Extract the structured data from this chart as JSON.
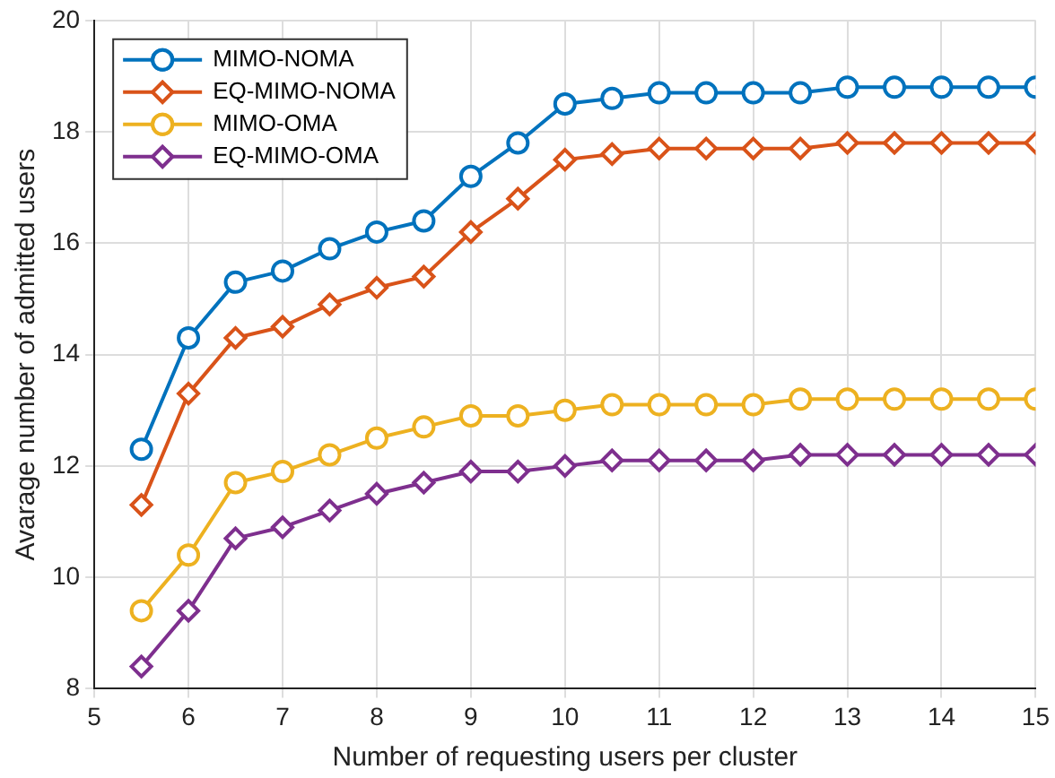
{
  "chart_data": {
    "type": "line",
    "xlabel": "Number of requesting users per cluster",
    "ylabel": "Avarage number of admitted users",
    "x": [
      5.5,
      6,
      6.5,
      7,
      7.5,
      8,
      8.5,
      9,
      9.5,
      10,
      10.5,
      11,
      11.5,
      12,
      12.5,
      13,
      13.5,
      14,
      14.5,
      15
    ],
    "series": [
      {
        "name": "MIMO-NOMA",
        "color": "#0072bd",
        "marker": "circle",
        "values": [
          12.3,
          14.3,
          15.3,
          15.5,
          15.9,
          16.2,
          16.4,
          17.2,
          17.8,
          18.5,
          18.6,
          18.7,
          18.7,
          18.7,
          18.7,
          18.8,
          18.8,
          18.8,
          18.8,
          18.8
        ]
      },
      {
        "name": "EQ-MIMO-NOMA",
        "color": "#d95319",
        "marker": "diamond",
        "values": [
          11.3,
          13.3,
          14.3,
          14.5,
          14.9,
          15.2,
          15.4,
          16.2,
          16.8,
          17.5,
          17.6,
          17.7,
          17.7,
          17.7,
          17.7,
          17.8,
          17.8,
          17.8,
          17.8,
          17.8
        ]
      },
      {
        "name": "MIMO-OMA",
        "color": "#edb120",
        "marker": "circle",
        "values": [
          9.4,
          10.4,
          11.7,
          11.9,
          12.2,
          12.5,
          12.7,
          12.9,
          12.9,
          13.0,
          13.1,
          13.1,
          13.1,
          13.1,
          13.2,
          13.2,
          13.2,
          13.2,
          13.2,
          13.2
        ]
      },
      {
        "name": "EQ-MIMO-OMA",
        "color": "#7e2f8e",
        "marker": "diamond",
        "values": [
          8.4,
          9.4,
          10.7,
          10.9,
          11.2,
          11.5,
          11.7,
          11.9,
          11.9,
          12.0,
          12.1,
          12.1,
          12.1,
          12.1,
          12.2,
          12.2,
          12.2,
          12.2,
          12.2,
          12.2
        ]
      }
    ],
    "xlim": [
      5,
      15
    ],
    "xticks": [
      5,
      6,
      7,
      8,
      9,
      10,
      11,
      12,
      13,
      14,
      15
    ],
    "ylim": [
      8,
      20
    ],
    "yticks": [
      8,
      10,
      12,
      14,
      16,
      18,
      20
    ],
    "grid": true,
    "legend": "top left"
  }
}
